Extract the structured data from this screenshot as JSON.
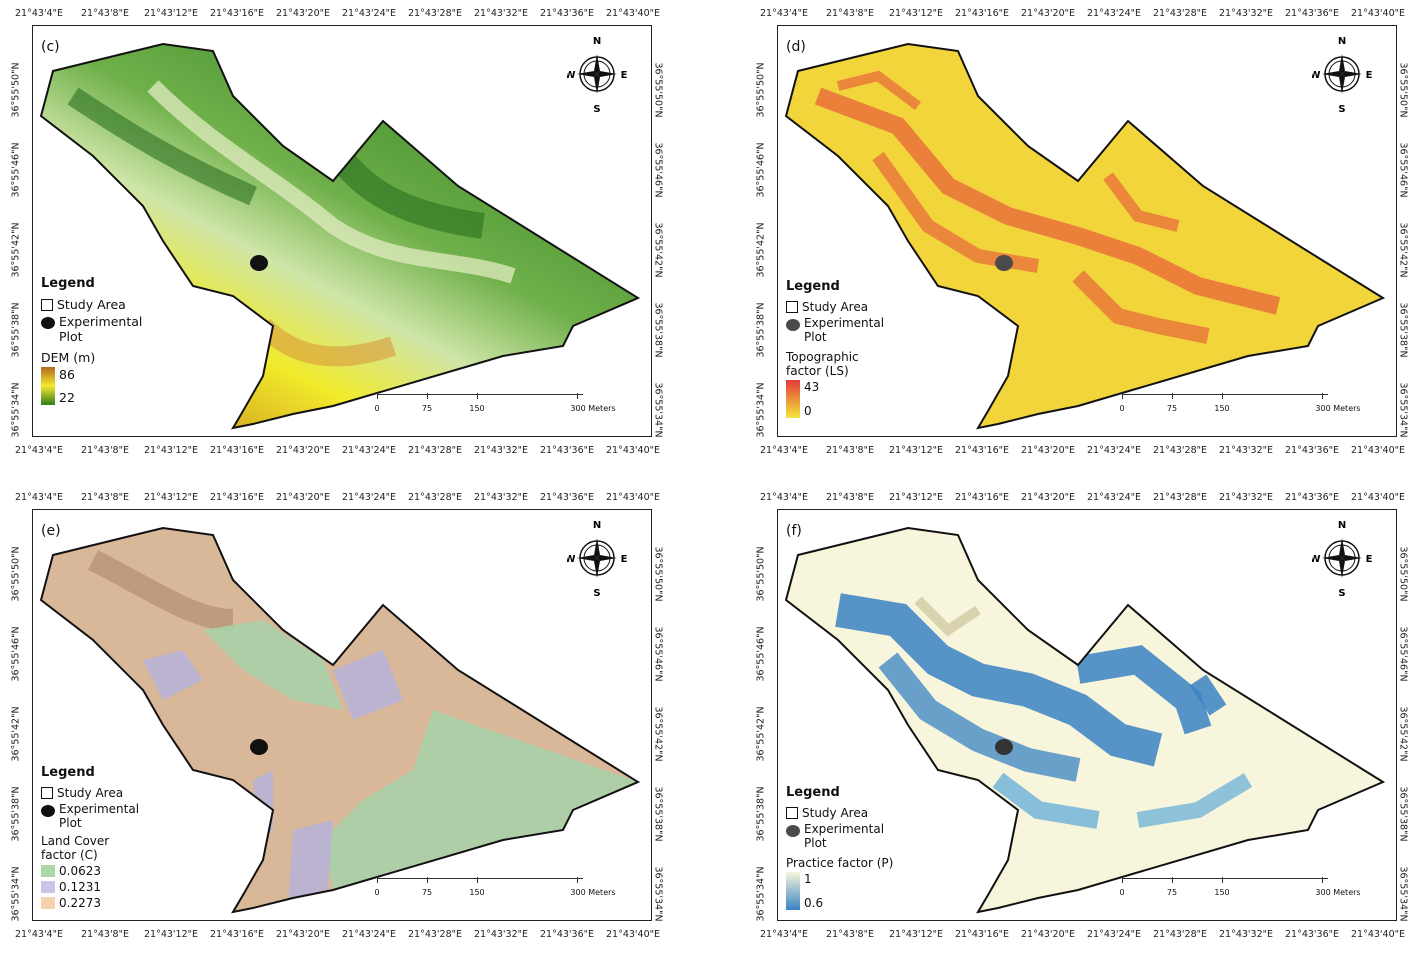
{
  "ticks": {
    "lon": [
      "21°43'4\"E",
      "21°43'8\"E",
      "21°43'12\"E",
      "21°43'16\"E",
      "21°43'20\"E",
      "21°43'24\"E",
      "21°43'28\"E",
      "21°43'32\"E",
      "21°43'36\"E",
      "21°43'40\"E"
    ],
    "lat": [
      "36°55'50\"N",
      "36°55'46\"N",
      "36°55'42\"N",
      "36°55'38\"N",
      "36°55'34\"N"
    ]
  },
  "compass": {
    "n": "N",
    "s": "S",
    "e": "E",
    "w": "W"
  },
  "scale": {
    "labels": [
      "0",
      "75",
      "150",
      "300 Meters"
    ]
  },
  "common": {
    "legend_title": "Legend",
    "study_area": "Study Area",
    "experimental_plot": "Experimental Plot"
  },
  "panels": {
    "c": {
      "label": "(c)",
      "layer_title": "DEM (m)",
      "high": "86",
      "low": "22",
      "colors": {
        "high": "#b5681e",
        "mid": "#f2ea2a",
        "low": "#2e7d1f"
      }
    },
    "d": {
      "label": "(d)",
      "layer_title": "Topographic factor (LS)",
      "high": "43",
      "low": "0",
      "colors": {
        "high": "#e33a3a",
        "low": "#f3e63a"
      }
    },
    "e": {
      "label": "(e)",
      "layer_title": "Land Cover factor (C)",
      "classes": [
        {
          "value": "0.0623",
          "color": "#a8d8a8"
        },
        {
          "value": "0.1231",
          "color": "#c9c4e8"
        },
        {
          "value": "0.2273",
          "color": "#f7d2b0"
        }
      ]
    },
    "f": {
      "label": "(f)",
      "layer_title": "Practice factor (P)",
      "high": "1",
      "low": "0.6",
      "colors": {
        "high": "#f7f5dc",
        "low": "#3a83c4"
      }
    }
  }
}
